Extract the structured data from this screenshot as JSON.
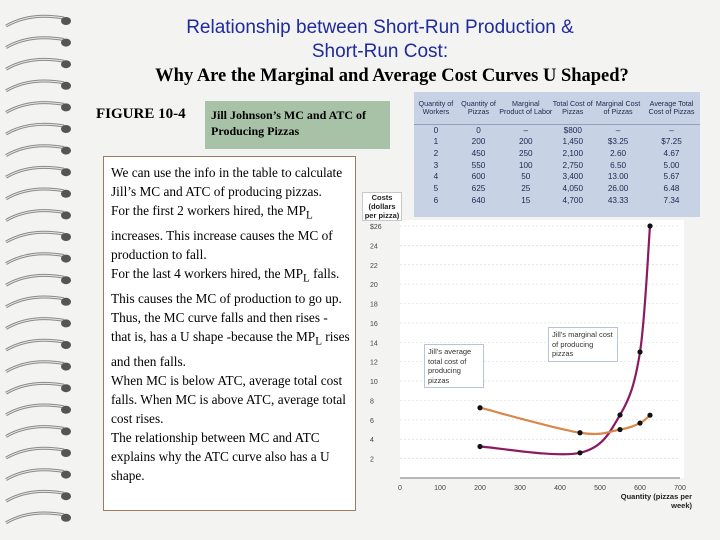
{
  "title_line1": "Relationship between Short-Run Production &",
  "title_line2": "Short-Run Cost:",
  "subtitle": "Why Are the Marginal and Average Cost Curves U Shaped?",
  "figure_label": "FIGURE 10-4",
  "figure_caption": "Jill Johnson’s MC and ATC of Producing Pizzas",
  "explanation": [
    "We can use the info in the table to calculate Jill’s MC and ATC of producing pizzas.",
    "For the first 2 workers hired, the MPL increases. This increase causes the MC of production to fall.",
    "For the last 4 workers hired, the MPL falls. This causes the MC of production to go up. Thus, the MC curve falls and then rises - that is, has a U shape -because the MPL rises and then falls.",
    "When MC is below ATC, average total cost falls. When MC is above ATC, average total cost rises.",
    "The relationship between MC and ATC explains why the ATC curve also has a U shape."
  ],
  "table": {
    "headers": [
      "Quantity of Workers",
      "Quantity of Pizzas",
      "Marginal Product of Labor",
      "Total Cost of Pizzas",
      "Marginal Cost of Pizzas",
      "Average Total Cost of Pizzas"
    ],
    "rows": [
      [
        "0",
        "0",
        "–",
        "$800",
        "–",
        "–"
      ],
      [
        "1",
        "200",
        "200",
        "1,450",
        "$3.25",
        "$7.25"
      ],
      [
        "2",
        "450",
        "250",
        "2,100",
        "2.60",
        "4.67"
      ],
      [
        "3",
        "550",
        "100",
        "2,750",
        "6.50",
        "5.00"
      ],
      [
        "4",
        "600",
        "50",
        "3,400",
        "13.00",
        "5.67"
      ],
      [
        "5",
        "625",
        "25",
        "4,050",
        "26.00",
        "6.48"
      ],
      [
        "6",
        "640",
        "15",
        "4,700",
        "43.33",
        "7.34"
      ]
    ]
  },
  "chart_data": {
    "type": "line",
    "ylabel": "Costs (dollars per pizza)",
    "xlabel": "Quantity (pizzas per week)",
    "xlim": [
      0,
      700
    ],
    "ylim": [
      0,
      26
    ],
    "x_ticks": [
      "0",
      "100",
      "200",
      "300",
      "400",
      "500",
      "600",
      "700"
    ],
    "y_ticks": [
      "2",
      "4",
      "6",
      "8",
      "10",
      "12",
      "14",
      "16",
      "18",
      "20",
      "22",
      "24",
      "$26"
    ],
    "series": [
      {
        "name": "Jill’s marginal cost of producing pizzas",
        "color": "#8b1a63",
        "points": [
          [
            200,
            3.25
          ],
          [
            450,
            2.6
          ],
          [
            550,
            6.5
          ],
          [
            600,
            13.0
          ],
          [
            625,
            26.0
          ]
        ]
      },
      {
        "name": "Jill’s average total cost of producing pizzas",
        "color": "#d9874a",
        "points": [
          [
            200,
            7.25
          ],
          [
            450,
            4.67
          ],
          [
            550,
            5.0
          ],
          [
            600,
            5.67
          ],
          [
            625,
            6.48
          ]
        ]
      }
    ]
  }
}
